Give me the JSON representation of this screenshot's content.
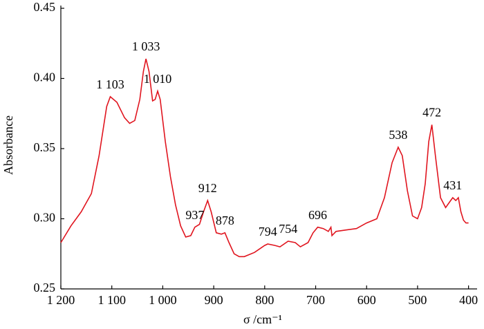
{
  "chart_data": {
    "type": "line",
    "x_label": "σ /cm⁻¹",
    "y_label": "Absorbance",
    "xlim": [
      1200,
      390
    ],
    "ylim": [
      0.25,
      0.45
    ],
    "xticks": [
      {
        "value": 1200,
        "label": "1 200"
      },
      {
        "value": 1100,
        "label": "1 100"
      },
      {
        "value": 1000,
        "label": "1 000"
      },
      900,
      800,
      700,
      600,
      500,
      400
    ],
    "yticks": [
      0.25,
      {
        "value": 0.3,
        "label": "0.30"
      },
      0.35,
      {
        "value": 0.4,
        "label": "0.40"
      },
      0.45
    ],
    "x": [
      1200,
      1180,
      1160,
      1140,
      1125,
      1110,
      1103,
      1090,
      1075,
      1065,
      1055,
      1045,
      1038,
      1033,
      1027,
      1020,
      1015,
      1010,
      1005,
      995,
      985,
      975,
      965,
      955,
      945,
      937,
      928,
      920,
      912,
      905,
      895,
      885,
      878,
      870,
      860,
      850,
      840,
      820,
      800,
      794,
      780,
      770,
      754,
      740,
      730,
      715,
      705,
      696,
      685,
      675,
      670,
      668,
      660,
      640,
      620,
      600,
      580,
      565,
      550,
      538,
      530,
      520,
      510,
      500,
      492,
      485,
      478,
      472,
      465,
      455,
      445,
      435,
      431,
      425,
      420,
      415,
      410,
      405,
      400
    ],
    "series": [
      {
        "color": "#e0141e",
        "values": [
          0.283,
          0.295,
          0.305,
          0.318,
          0.345,
          0.38,
          0.387,
          0.383,
          0.372,
          0.368,
          0.37,
          0.385,
          0.405,
          0.414,
          0.405,
          0.384,
          0.385,
          0.391,
          0.385,
          0.355,
          0.33,
          0.31,
          0.295,
          0.287,
          0.288,
          0.294,
          0.296,
          0.305,
          0.313,
          0.305,
          0.29,
          0.289,
          0.29,
          0.283,
          0.275,
          0.273,
          0.273,
          0.276,
          0.281,
          0.282,
          0.281,
          0.28,
          0.284,
          0.283,
          0.28,
          0.283,
          0.29,
          0.294,
          0.293,
          0.291,
          0.294,
          0.288,
          0.291,
          0.292,
          0.293,
          0.297,
          0.3,
          0.315,
          0.34,
          0.351,
          0.345,
          0.32,
          0.302,
          0.3,
          0.308,
          0.325,
          0.355,
          0.367,
          0.345,
          0.315,
          0.308,
          0.313,
          0.315,
          0.313,
          0.315,
          0.305,
          0.299,
          0.297,
          0.297
        ]
      }
    ],
    "annotations": [
      {
        "text": "1 103",
        "x": 1103,
        "y": 0.387
      },
      {
        "text": "1 033",
        "x": 1033,
        "y": 0.414
      },
      {
        "text": "1 010",
        "x": 1010,
        "y": 0.391
      },
      {
        "text": "937",
        "x": 937,
        "y": 0.294
      },
      {
        "text": "912",
        "x": 912,
        "y": 0.313
      },
      {
        "text": "878",
        "x": 878,
        "y": 0.29
      },
      {
        "text": "794",
        "x": 794,
        "y": 0.282
      },
      {
        "text": "754",
        "x": 754,
        "y": 0.284
      },
      {
        "text": "696",
        "x": 696,
        "y": 0.294
      },
      {
        "text": "538",
        "x": 538,
        "y": 0.351
      },
      {
        "text": "472",
        "x": 472,
        "y": 0.367
      },
      {
        "text": "431",
        "x": 431,
        "y": 0.315
      }
    ]
  }
}
